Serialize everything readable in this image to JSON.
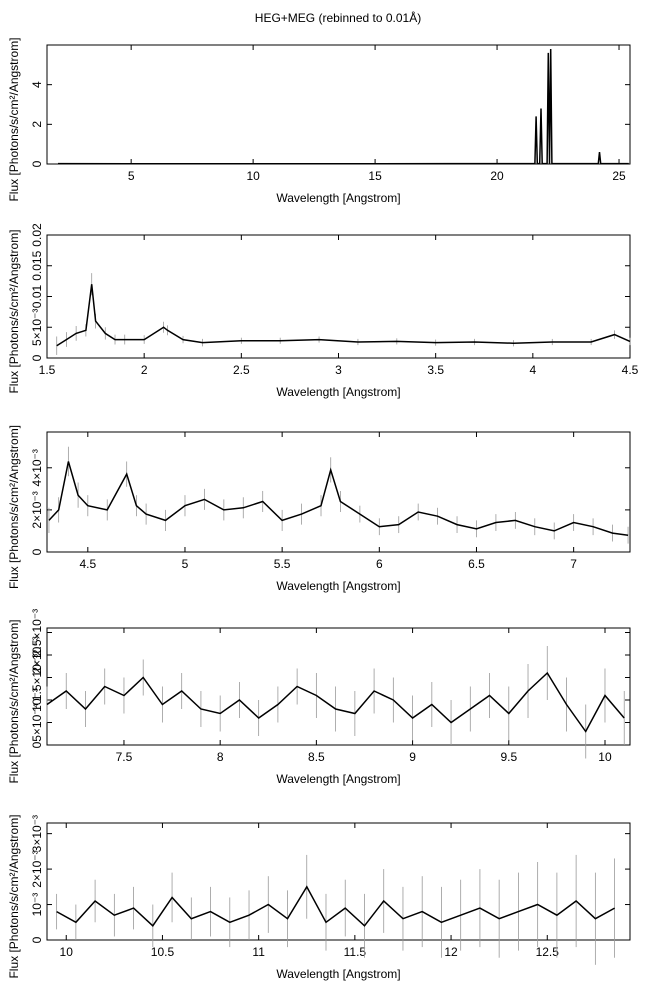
{
  "chart_data": [
    {
      "type": "line",
      "title": "HEG+MEG (rebinned to 0.01Å)",
      "xlabel": "Wavelength [Angstrom]",
      "ylabel": "Flux [Photons/s/cm²/Angstrom]",
      "xlim": [
        1.55,
        25.45
      ],
      "ylim": [
        0,
        6
      ],
      "xticks": [
        5,
        10,
        15,
        20,
        25
      ],
      "yticks": [
        0,
        2,
        4
      ],
      "color": "#000000",
      "x": [
        2,
        5,
        10,
        15,
        18,
        20,
        21.55,
        21.6,
        21.65,
        21.75,
        21.8,
        21.85,
        22.05,
        22.1,
        22.15,
        22.2,
        22.25,
        24.15,
        24.2,
        24.25,
        25.4
      ],
      "values": [
        0.02,
        0.01,
        0.01,
        0.01,
        0.02,
        0.02,
        0.02,
        2.4,
        0.02,
        0.02,
        2.8,
        0.02,
        0.02,
        5.6,
        0.02,
        5.8,
        0.02,
        0.02,
        0.6,
        0.02,
        0.02
      ]
    },
    {
      "type": "line",
      "xlabel": "Wavelength [Angstrom]",
      "ylabel": "Flux [Photons/s/cm²/Angstrom]",
      "xlim": [
        1.5,
        4.5
      ],
      "ylim": [
        0,
        0.02
      ],
      "xticks": [
        1.5,
        2,
        2.5,
        3,
        3.5,
        4,
        4.5
      ],
      "yticks": [
        0,
        {
          "value": 0.005,
          "label": "5×10⁻³"
        },
        0.01,
        0.015,
        0.02
      ],
      "color": "#000000",
      "error_color": "#999999",
      "x": [
        1.55,
        1.6,
        1.65,
        1.7,
        1.73,
        1.75,
        1.8,
        1.85,
        1.9,
        2.0,
        2.1,
        2.12,
        2.2,
        2.3,
        2.5,
        2.7,
        2.9,
        3.1,
        3.3,
        3.5,
        3.7,
        3.9,
        4.1,
        4.3,
        4.42,
        4.5
      ],
      "values": [
        0.002,
        0.003,
        0.004,
        0.0045,
        0.012,
        0.006,
        0.004,
        0.003,
        0.003,
        0.003,
        0.005,
        0.0045,
        0.003,
        0.0025,
        0.0028,
        0.0028,
        0.003,
        0.0026,
        0.0027,
        0.0025,
        0.0026,
        0.0024,
        0.0026,
        0.0026,
        0.0038,
        0.0027
      ],
      "errors": [
        0.0015,
        0.0012,
        0.0012,
        0.001,
        0.0018,
        0.0012,
        0.001,
        0.0008,
        0.0008,
        0.0007,
        0.0009,
        0.0008,
        0.0006,
        0.0006,
        0.0005,
        0.0005,
        0.0005,
        0.0005,
        0.0005,
        0.0005,
        0.0005,
        0.0005,
        0.0005,
        0.0005,
        0.0007,
        0.0006
      ]
    },
    {
      "type": "line",
      "xlabel": "Wavelength [Angstrom]",
      "ylabel": "Flux [Photons/s/cm²/Angstrom]",
      "xlim": [
        4.29,
        7.29
      ],
      "ylim": [
        0,
        0.0057
      ],
      "xticks": [
        4.5,
        5,
        5.5,
        6,
        6.5,
        7
      ],
      "yticks": [
        0,
        {
          "value": 0.002,
          "label": "2×10⁻³"
        },
        {
          "value": 0.004,
          "label": "4×10⁻³"
        }
      ],
      "color": "#000000",
      "error_color": "#999999",
      "x": [
        4.3,
        4.35,
        4.4,
        4.45,
        4.5,
        4.6,
        4.7,
        4.75,
        4.8,
        4.9,
        5.0,
        5.1,
        5.2,
        5.3,
        5.4,
        5.5,
        5.6,
        5.7,
        5.75,
        5.8,
        5.9,
        6.0,
        6.1,
        6.2,
        6.3,
        6.4,
        6.5,
        6.6,
        6.7,
        6.8,
        6.9,
        7.0,
        7.1,
        7.2,
        7.28
      ],
      "values": [
        0.0015,
        0.002,
        0.0043,
        0.0027,
        0.0022,
        0.002,
        0.0037,
        0.0022,
        0.0018,
        0.0015,
        0.0022,
        0.0025,
        0.002,
        0.0021,
        0.0024,
        0.0015,
        0.0018,
        0.0022,
        0.0039,
        0.0024,
        0.0018,
        0.0012,
        0.0013,
        0.0019,
        0.0017,
        0.0013,
        0.0011,
        0.0014,
        0.0015,
        0.0012,
        0.001,
        0.0014,
        0.0012,
        0.0009,
        0.0008
      ],
      "errors": [
        0.0006,
        0.0006,
        0.0007,
        0.0006,
        0.0005,
        0.0005,
        0.0006,
        0.0005,
        0.0005,
        0.0005,
        0.0005,
        0.0005,
        0.0005,
        0.0005,
        0.0005,
        0.0005,
        0.0005,
        0.0005,
        0.0006,
        0.0005,
        0.0004,
        0.0004,
        0.0004,
        0.0004,
        0.0004,
        0.0004,
        0.0004,
        0.0004,
        0.0004,
        0.0004,
        0.0004,
        0.0004,
        0.0004,
        0.0004,
        0.0004
      ]
    },
    {
      "type": "line",
      "xlabel": "Wavelength [Angstrom]",
      "ylabel": "Flux [Photons/s/cm²/Angstrom]",
      "xlim": [
        7.1,
        10.13
      ],
      "ylim": [
        0,
        0.0026
      ],
      "xticks": [
        7.5,
        8,
        8.5,
        9,
        9.5,
        10
      ],
      "yticks": [
        0,
        {
          "value": 0.0005,
          "label": "5×10⁻⁴"
        },
        {
          "value": 0.001,
          "label": "10⁻³"
        },
        {
          "value": 0.0015,
          "label": "1.5×10⁻³"
        },
        {
          "value": 0.002,
          "label": "2×10⁻³"
        },
        {
          "value": 0.0025,
          "label": "2.5×10⁻³"
        }
      ],
      "color": "#000000",
      "error_color": "#999999",
      "x": [
        7.1,
        7.2,
        7.3,
        7.4,
        7.5,
        7.6,
        7.7,
        7.8,
        7.9,
        8.0,
        8.1,
        8.2,
        8.3,
        8.4,
        8.5,
        8.6,
        8.7,
        8.8,
        8.9,
        9.0,
        9.1,
        9.2,
        9.3,
        9.4,
        9.5,
        9.6,
        9.7,
        9.8,
        9.9,
        10.0,
        10.1
      ],
      "values": [
        0.0009,
        0.0012,
        0.0008,
        0.0013,
        0.0011,
        0.0015,
        0.0009,
        0.0012,
        0.0008,
        0.0007,
        0.001,
        0.0006,
        0.0009,
        0.0013,
        0.0011,
        0.0008,
        0.0007,
        0.0012,
        0.001,
        0.0006,
        0.0009,
        0.0005,
        0.0008,
        0.0011,
        0.0007,
        0.0012,
        0.0016,
        0.0009,
        0.0003,
        0.0011,
        0.0006
      ],
      "errors": [
        0.0004,
        0.0004,
        0.0004,
        0.0004,
        0.0004,
        0.0004,
        0.0004,
        0.0004,
        0.0004,
        0.0004,
        0.0004,
        0.0004,
        0.0004,
        0.0004,
        0.0005,
        0.0005,
        0.0005,
        0.0005,
        0.0005,
        0.0005,
        0.0005,
        0.0005,
        0.0005,
        0.0005,
        0.0006,
        0.0006,
        0.0006,
        0.0006,
        0.0006,
        0.0006,
        0.0006
      ]
    },
    {
      "type": "line",
      "xlabel": "Wavelength [Angstrom]",
      "ylabel": "Flux [Photons/s/cm²/Angstrom]",
      "xlim": [
        9.9,
        12.93
      ],
      "ylim": [
        0,
        0.0033
      ],
      "xticks": [
        10,
        10.5,
        11,
        11.5,
        12,
        12.5
      ],
      "yticks": [
        0,
        {
          "value": 0.001,
          "label": "10⁻³"
        },
        {
          "value": 0.002,
          "label": "2×10⁻³"
        },
        {
          "value": 0.003,
          "label": "3×10⁻³"
        }
      ],
      "color": "#000000",
      "error_color": "#999999",
      "x": [
        9.95,
        10.05,
        10.15,
        10.25,
        10.35,
        10.45,
        10.55,
        10.65,
        10.75,
        10.85,
        10.95,
        11.05,
        11.15,
        11.25,
        11.35,
        11.45,
        11.55,
        11.65,
        11.75,
        11.85,
        11.95,
        12.05,
        12.15,
        12.25,
        12.35,
        12.45,
        12.55,
        12.65,
        12.75,
        12.85
      ],
      "values": [
        0.0008,
        0.0005,
        0.0011,
        0.0007,
        0.0009,
        0.0004,
        0.0012,
        0.0006,
        0.0008,
        0.0005,
        0.0007,
        0.001,
        0.0006,
        0.0015,
        0.0005,
        0.0009,
        0.0004,
        0.0011,
        0.0006,
        0.0008,
        0.0005,
        0.0007,
        0.0009,
        0.0006,
        0.0008,
        0.001,
        0.0007,
        0.0011,
        0.0006,
        0.0009
      ],
      "errors": [
        0.0005,
        0.0005,
        0.0006,
        0.0006,
        0.0006,
        0.0006,
        0.0007,
        0.0006,
        0.0007,
        0.0007,
        0.0007,
        0.0008,
        0.0008,
        0.0009,
        0.0008,
        0.0008,
        0.0009,
        0.0009,
        0.0009,
        0.001,
        0.001,
        0.001,
        0.0011,
        0.0011,
        0.0011,
        0.0012,
        0.0012,
        0.0013,
        0.0013,
        0.0014
      ]
    }
  ]
}
